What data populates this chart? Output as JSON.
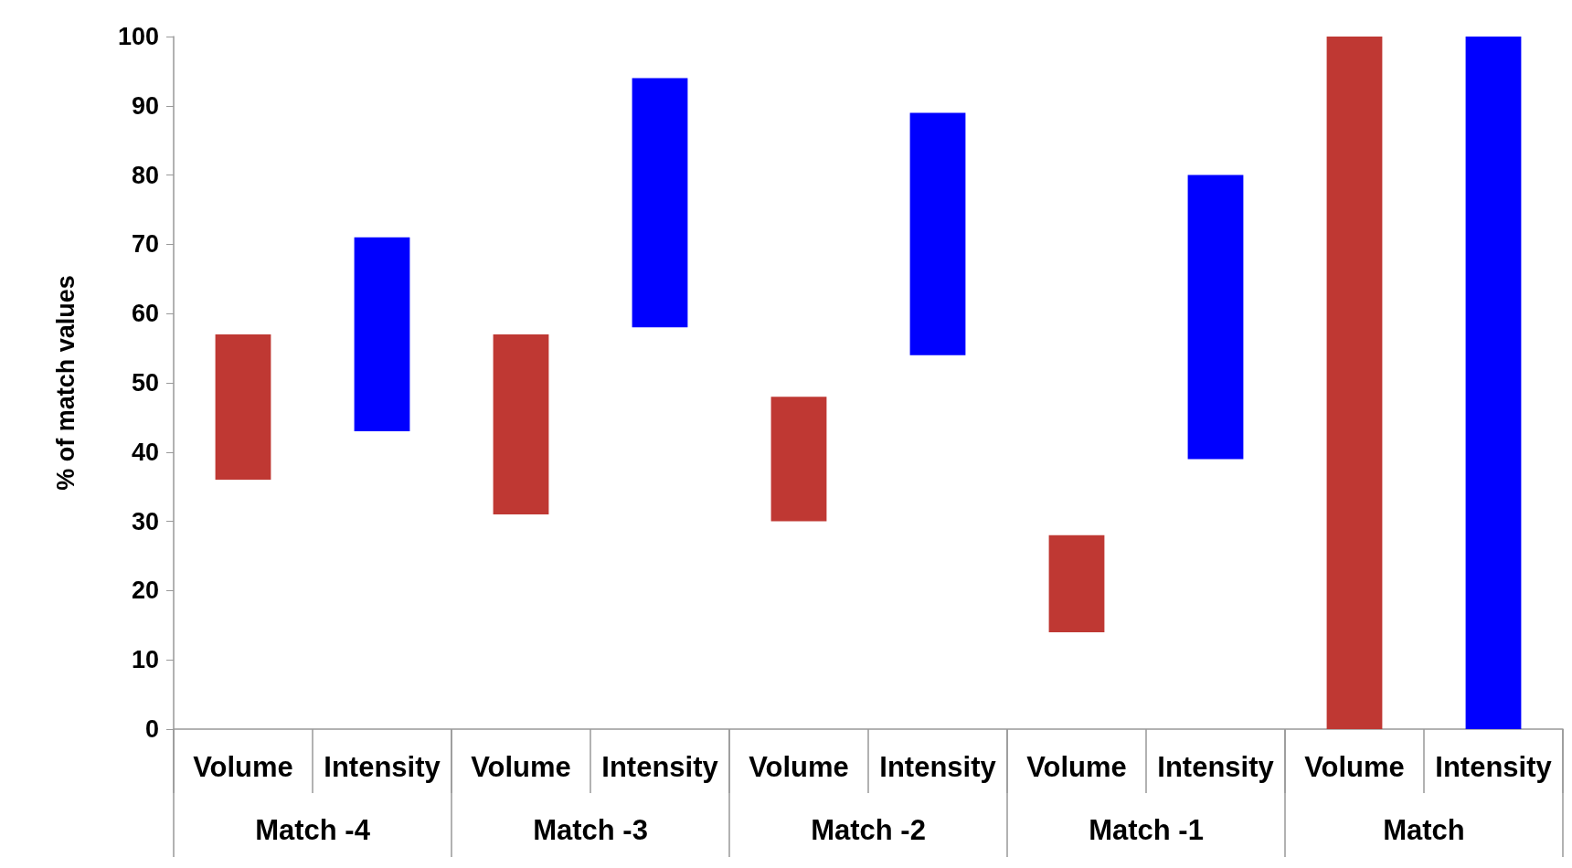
{
  "chart_data": {
    "type": "bar",
    "ylabel": "% of match values",
    "categories": [
      "Volume",
      "Intensity",
      "Volume",
      "Intensity",
      "Volume",
      "Intensity",
      "Volume",
      "Intensity",
      "Volume",
      "Intensity"
    ],
    "base": [
      36,
      43,
      31,
      58,
      30,
      54,
      14,
      39,
      0,
      0
    ],
    "values": [
      21,
      28,
      26,
      36,
      18,
      35,
      14,
      41,
      100,
      100
    ],
    "colors": [
      "#bf3833",
      "#0000ff",
      "#bf3833",
      "#0000ff",
      "#bf3833",
      "#0000ff",
      "#bf3833",
      "#0000ff",
      "#bf3833",
      "#0000ff"
    ],
    "annotations": [
      "Match -4",
      "Match -3",
      "Match -2",
      "Match -1",
      "Match"
    ],
    "ylim": [
      0,
      100
    ],
    "yticks": [
      0,
      10,
      20,
      30,
      40,
      50,
      60,
      70,
      80,
      90,
      100
    ],
    "grid": false
  }
}
